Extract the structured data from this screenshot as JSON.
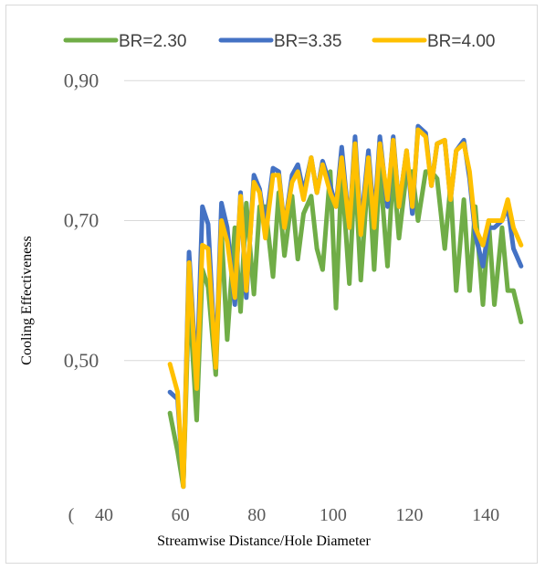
{
  "chart_data": {
    "type": "line",
    "title": "",
    "xlabel": "Streamwise Distance/Hole Diameter",
    "ylabel": "Cooling Effectiveness",
    "xlim": [
      40,
      145
    ],
    "ylim": [
      0.3,
      0.95
    ],
    "x_ticks": [
      40,
      60,
      80,
      100,
      120,
      140
    ],
    "x_tick_labels": [
      "40",
      "60",
      "80",
      "100",
      "120",
      "140"
    ],
    "y_ticks": [
      0.5,
      0.7,
      0.9
    ],
    "y_tick_labels": [
      "0,50",
      "0,70",
      "0,90"
    ],
    "clipped_bottom_tick_label": "(",
    "grid": "horizontal",
    "legend_position": "top",
    "x": [
      52,
      54,
      55.5,
      57,
      59,
      60.5,
      62,
      64,
      65.5,
      67,
      69,
      70.5,
      72,
      74,
      75.5,
      77,
      79,
      80.5,
      82,
      84,
      85.5,
      87,
      89,
      90.5,
      92,
      94,
      95.5,
      97,
      99,
      100.5,
      102,
      104,
      105.5,
      107,
      109,
      110.5,
      112,
      114,
      115.5,
      117,
      119,
      120.5,
      122,
      124,
      125.5,
      127,
      129,
      130.5,
      132,
      134,
      135.5,
      137,
      139,
      140.5,
      142,
      144
    ],
    "series": [
      {
        "name": "BR=2.30",
        "color": "#70ad47",
        "values": [
          0.425,
          0.37,
          0.32,
          0.59,
          0.42,
          0.63,
          0.6,
          0.48,
          0.68,
          0.53,
          0.69,
          0.57,
          0.72,
          0.6,
          0.72,
          0.72,
          0.62,
          0.74,
          0.65,
          0.74,
          0.65,
          0.7,
          0.74,
          0.66,
          0.63,
          0.77,
          0.58,
          0.77,
          0.61,
          0.78,
          0.62,
          0.78,
          0.63,
          0.78,
          0.64,
          0.78,
          0.68,
          0.77,
          0.77,
          0.7,
          0.77,
          0.77,
          0.76,
          0.66,
          0.75,
          0.6,
          0.73,
          0.6,
          0.72,
          0.58,
          0.7,
          0.58,
          0.69,
          0.6,
          0.6,
          0.555
        ],
        "render_values": [
          0.425,
          0.37,
          0.32,
          0.595,
          0.415,
          0.63,
          0.605,
          0.48,
          0.685,
          0.53,
          0.69,
          0.57,
          0.725,
          0.595,
          0.72,
          0.72,
          0.62,
          0.74,
          0.65,
          0.735,
          0.645,
          0.71,
          0.735,
          0.66,
          0.63,
          0.77,
          0.575,
          0.77,
          0.61,
          0.775,
          0.615,
          0.775,
          0.63,
          0.775,
          0.635,
          0.775,
          0.675,
          0.77,
          0.77,
          0.7,
          0.77,
          0.77,
          0.76,
          0.66,
          0.75,
          0.6,
          0.73,
          0.6,
          0.72,
          0.58,
          0.7,
          0.58,
          0.69,
          0.6,
          0.6,
          0.555
        ]
      },
      {
        "name": "BR=3.35",
        "color": "#4472c4",
        "values": [
          0.455,
          0.445,
          0.32,
          0.655,
          0.47,
          0.72,
          0.695,
          0.49,
          0.725,
          0.69,
          0.58,
          0.74,
          0.59,
          0.765,
          0.745,
          0.69,
          0.775,
          0.77,
          0.69,
          0.765,
          0.78,
          0.74,
          0.79,
          0.74,
          0.785,
          0.75,
          0.72,
          0.8,
          0.69,
          0.82,
          0.69,
          0.8,
          0.7,
          0.82,
          0.72,
          0.82,
          0.72,
          0.8,
          0.71,
          0.835,
          0.825,
          0.75,
          0.81,
          0.815,
          0.73,
          0.8,
          0.815,
          0.76,
          0.68,
          0.635,
          0.69,
          0.69,
          0.7,
          0.72,
          0.66,
          0.635
        ],
        "render_values": [
          0.455,
          0.445,
          0.32,
          0.655,
          0.47,
          0.72,
          0.695,
          0.49,
          0.725,
          0.69,
          0.58,
          0.74,
          0.59,
          0.765,
          0.745,
          0.69,
          0.775,
          0.77,
          0.69,
          0.765,
          0.78,
          0.74,
          0.79,
          0.74,
          0.785,
          0.75,
          0.72,
          0.805,
          0.69,
          0.82,
          0.69,
          0.8,
          0.7,
          0.82,
          0.72,
          0.82,
          0.72,
          0.8,
          0.71,
          0.835,
          0.825,
          0.75,
          0.81,
          0.815,
          0.73,
          0.8,
          0.815,
          0.76,
          0.68,
          0.635,
          0.69,
          0.69,
          0.7,
          0.72,
          0.66,
          0.635
        ]
      },
      {
        "name": "BR=4.00",
        "color": "#ffc000",
        "values": [
          0.495,
          0.455,
          0.32,
          0.64,
          0.46,
          0.665,
          0.66,
          0.49,
          0.7,
          0.67,
          0.59,
          0.735,
          0.6,
          0.755,
          0.74,
          0.675,
          0.765,
          0.765,
          0.69,
          0.755,
          0.77,
          0.73,
          0.79,
          0.74,
          0.78,
          0.74,
          0.72,
          0.79,
          0.69,
          0.81,
          0.68,
          0.79,
          0.69,
          0.81,
          0.73,
          0.815,
          0.72,
          0.8,
          0.72,
          0.83,
          0.82,
          0.75,
          0.81,
          0.815,
          0.73,
          0.8,
          0.81,
          0.77,
          0.69,
          0.665,
          0.7,
          0.7,
          0.7,
          0.73,
          0.69,
          0.665
        ],
        "render_values": [
          0.495,
          0.455,
          0.32,
          0.64,
          0.46,
          0.665,
          0.66,
          0.49,
          0.7,
          0.67,
          0.59,
          0.735,
          0.6,
          0.755,
          0.74,
          0.675,
          0.765,
          0.765,
          0.69,
          0.755,
          0.77,
          0.73,
          0.79,
          0.74,
          0.78,
          0.74,
          0.72,
          0.79,
          0.69,
          0.81,
          0.68,
          0.79,
          0.69,
          0.81,
          0.73,
          0.815,
          0.72,
          0.8,
          0.72,
          0.83,
          0.82,
          0.75,
          0.81,
          0.815,
          0.73,
          0.8,
          0.81,
          0.77,
          0.69,
          0.665,
          0.7,
          0.7,
          0.7,
          0.73,
          0.69,
          0.665
        ]
      }
    ]
  }
}
